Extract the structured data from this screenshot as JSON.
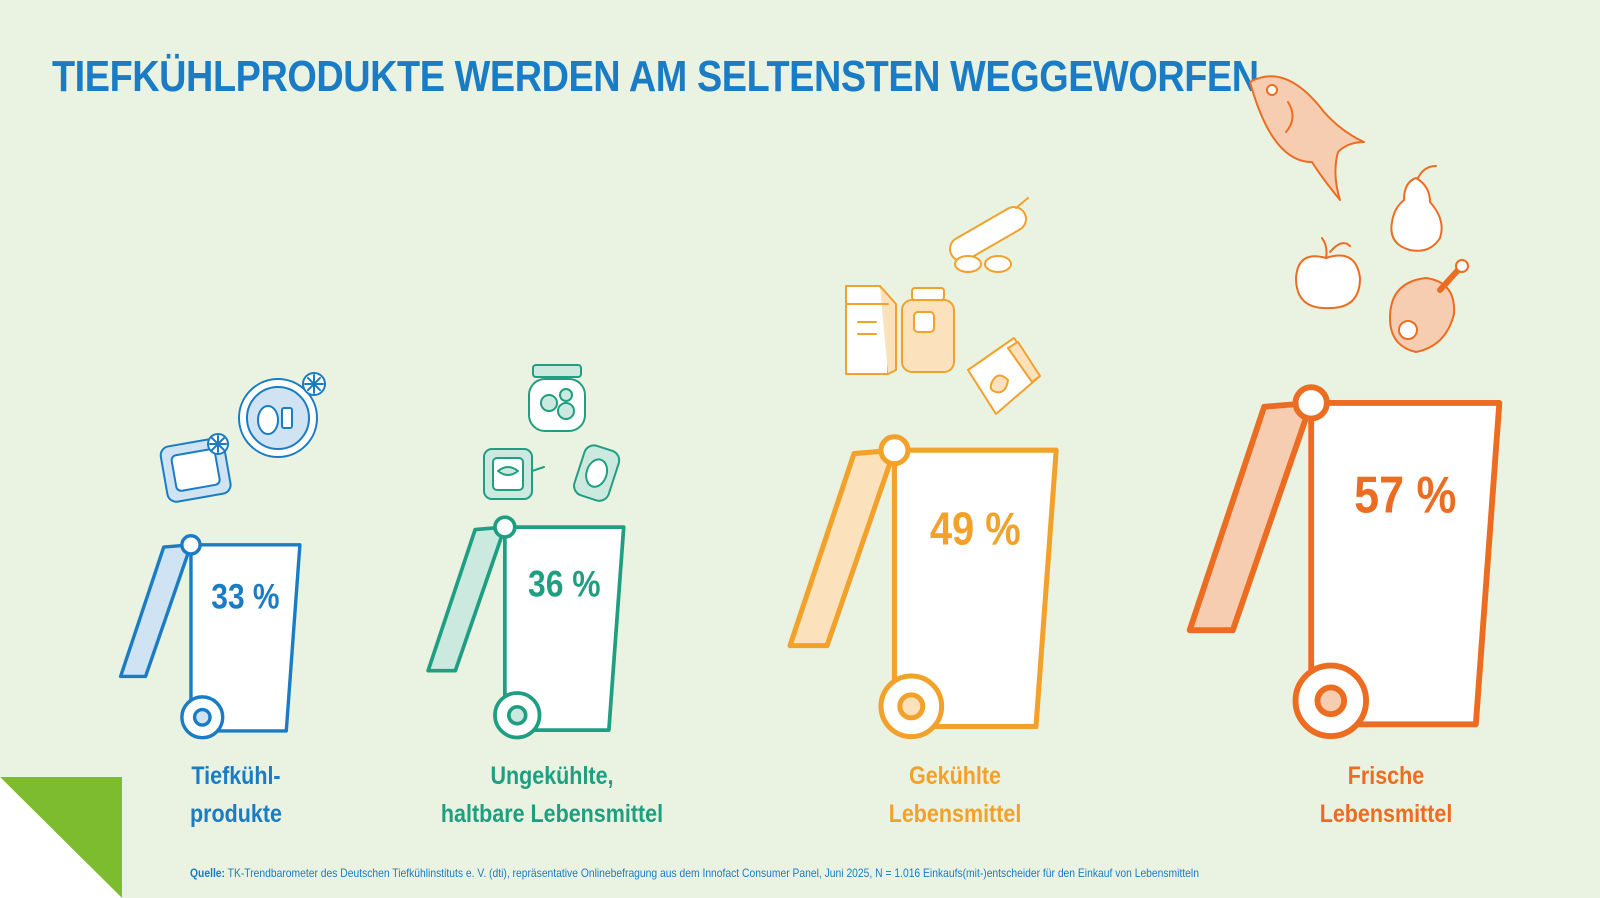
{
  "title": "TIEFKÜHLPRODUKTE WERDEN AM SELTENSTEN WEGGEWORFEN",
  "chart_data": {
    "type": "bar",
    "categories": [
      "Tiefkühlprodukte",
      "Ungekühlte, haltbare Lebensmittel",
      "Gekühlte Lebensmittel",
      "Frische Lebensmittel"
    ],
    "values": [
      33,
      36,
      49,
      57
    ],
    "value_labels": [
      "33 %",
      "36 %",
      "49 %",
      "57 %"
    ],
    "category_lines": [
      [
        "Tiefkühl-",
        "produkte"
      ],
      [
        "Ungekühlte,",
        "haltbare Lebensmittel"
      ],
      [
        "Gekühlte",
        "Lebensmittel"
      ],
      [
        "Frische",
        "Lebensmittel"
      ]
    ],
    "colors": [
      "#1a7cc4",
      "#1f9e82",
      "#f2a12b",
      "#ec6d22"
    ],
    "fill_colors": [
      "#cfe3f3",
      "#cbe9df",
      "#fbe2bd",
      "#f7cdb2"
    ],
    "icons": [
      [
        "frozen-meal-tray-icon",
        "frozen-plate-icon"
      ],
      [
        "tin-can-icon",
        "glass-jar-icon",
        "soda-can-icon"
      ],
      [
        "milk-carton-icon",
        "juice-bottle-icon",
        "sausage-icon",
        "yogurt-cup-icon"
      ],
      [
        "fish-icon",
        "pear-icon",
        "apple-icon",
        "ham-leg-icon"
      ]
    ]
  },
  "source": {
    "label": "Quelle:",
    "text": "TK-Trendbarometer des Deutschen Tiefkühlinstituts e. V. (dti), repräsentative Onlinebefragung aus dem Innofact Consumer Panel, Juni 2025, N = 1.016 Einkaufs(mit-)entscheider für den Einkauf von Lebensmitteln"
  },
  "accent_green": "#7dbb2f"
}
